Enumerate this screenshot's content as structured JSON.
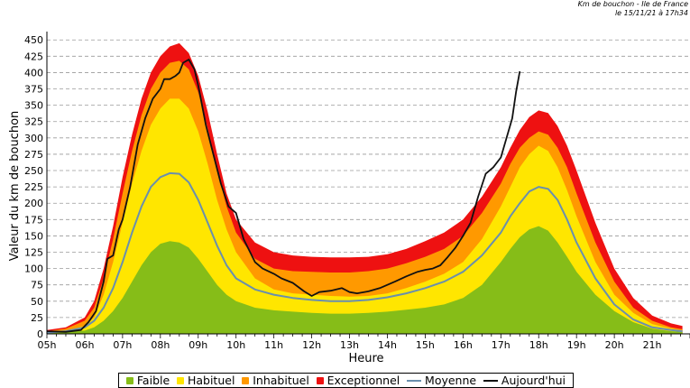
{
  "header": {
    "line1": "Km de bouchon - Ile de France",
    "line2": "le 15/11/21 à 17h34"
  },
  "chart_data": {
    "type": "area",
    "ylabel": "Valeur du  km de bouchon",
    "xlabel": "Heure",
    "ylim": [
      0,
      460
    ],
    "yticks": [
      0,
      25,
      50,
      75,
      100,
      125,
      150,
      175,
      200,
      225,
      250,
      275,
      300,
      325,
      350,
      375,
      400,
      425,
      450
    ],
    "xlim": [
      5,
      22
    ],
    "xtick_labels": [
      "05h",
      "06h",
      "07h",
      "08h",
      "09h",
      "10h",
      "11h",
      "12h",
      "13h",
      "14h",
      "15h",
      "16h",
      "17h",
      "18h",
      "19h",
      "20h",
      "21h"
    ],
    "grid": true,
    "x": [
      5.0,
      5.5,
      6.0,
      6.25,
      6.5,
      6.75,
      7.0,
      7.25,
      7.5,
      7.75,
      8.0,
      8.25,
      8.5,
      8.75,
      9.0,
      9.25,
      9.5,
      9.75,
      10.0,
      10.5,
      11.0,
      11.5,
      12.0,
      12.5,
      13.0,
      13.5,
      14.0,
      14.5,
      15.0,
      15.5,
      16.0,
      16.5,
      17.0,
      17.25,
      17.5,
      17.75,
      18.0,
      18.25,
      18.5,
      18.75,
      19.0,
      19.5,
      20.0,
      20.5,
      21.0,
      21.5,
      21.8
    ],
    "series": [
      {
        "name": "Faible",
        "color": "#86bd18",
        "kind": "area",
        "values": [
          2,
          3,
          5,
          10,
          20,
          35,
          55,
          80,
          105,
          125,
          138,
          142,
          140,
          132,
          115,
          95,
          75,
          60,
          50,
          40,
          36,
          34,
          32,
          31,
          31,
          32,
          34,
          37,
          40,
          45,
          55,
          75,
          110,
          130,
          148,
          160,
          165,
          158,
          140,
          118,
          95,
          60,
          35,
          18,
          8,
          4,
          3
        ]
      },
      {
        "name": "Habituel",
        "color": "#ffe600",
        "kind": "area",
        "values": [
          3,
          5,
          12,
          25,
          60,
          110,
          170,
          230,
          280,
          320,
          345,
          360,
          360,
          345,
          310,
          260,
          205,
          160,
          125,
          85,
          68,
          62,
          60,
          58,
          57,
          58,
          62,
          70,
          80,
          92,
          110,
          145,
          195,
          225,
          255,
          275,
          288,
          280,
          255,
          220,
          180,
          110,
          60,
          32,
          15,
          8,
          5
        ]
      },
      {
        "name": "Inhabituel",
        "color": "#ff9900",
        "kind": "area",
        "values": [
          4,
          8,
          20,
          40,
          85,
          145,
          215,
          280,
          335,
          375,
          400,
          415,
          418,
          405,
          370,
          315,
          250,
          195,
          155,
          115,
          100,
          96,
          95,
          94,
          94,
          96,
          100,
          108,
          118,
          130,
          150,
          185,
          230,
          260,
          285,
          300,
          310,
          305,
          285,
          255,
          215,
          140,
          80,
          40,
          20,
          10,
          7
        ]
      },
      {
        "name": "Exceptionnel",
        "color": "#ee1111",
        "kind": "area",
        "values": [
          6,
          10,
          25,
          50,
          100,
          165,
          240,
          305,
          360,
          400,
          425,
          440,
          445,
          430,
          395,
          340,
          275,
          215,
          175,
          140,
          125,
          120,
          118,
          117,
          117,
          118,
          122,
          130,
          142,
          155,
          175,
          210,
          255,
          285,
          312,
          332,
          342,
          338,
          318,
          288,
          250,
          170,
          100,
          55,
          28,
          16,
          12
        ]
      },
      {
        "name": "Moyenne",
        "color": "#6a8fad",
        "kind": "line",
        "values": [
          2,
          4,
          10,
          20,
          40,
          70,
          110,
          155,
          195,
          225,
          240,
          246,
          245,
          232,
          205,
          170,
          135,
          105,
          85,
          68,
          60,
          55,
          52,
          50,
          50,
          52,
          56,
          62,
          70,
          80,
          95,
          120,
          155,
          180,
          200,
          218,
          225,
          222,
          205,
          175,
          140,
          85,
          45,
          22,
          10,
          6,
          4
        ]
      },
      {
        "name": "Aujourd'hui",
        "color": "#111111",
        "kind": "line",
        "x": [
          5.0,
          5.5,
          5.9,
          6.1,
          6.3,
          6.5,
          6.6,
          6.75,
          6.9,
          7.0,
          7.2,
          7.4,
          7.6,
          7.8,
          8.0,
          8.1,
          8.25,
          8.4,
          8.5,
          8.6,
          8.75,
          8.9,
          9.0,
          9.2,
          9.4,
          9.6,
          9.8,
          10.0,
          10.2,
          10.5,
          10.7,
          11.0,
          11.2,
          11.5,
          11.8,
          12.0,
          12.2,
          12.5,
          12.8,
          13.0,
          13.2,
          13.5,
          13.8,
          14.0,
          14.2,
          14.5,
          14.8,
          15.0,
          15.2,
          15.4,
          15.6,
          15.8,
          16.0,
          16.2,
          16.4,
          16.6,
          16.8,
          17.0,
          17.2,
          17.3,
          17.4,
          17.5
        ],
        "values": [
          4,
          3,
          6,
          18,
          35,
          80,
          115,
          120,
          160,
          175,
          225,
          290,
          330,
          360,
          375,
          390,
          390,
          395,
          400,
          415,
          420,
          405,
          380,
          320,
          275,
          230,
          195,
          185,
          145,
          110,
          100,
          92,
          85,
          78,
          65,
          58,
          64,
          66,
          70,
          64,
          62,
          65,
          70,
          75,
          80,
          88,
          95,
          98,
          100,
          105,
          118,
          132,
          150,
          170,
          210,
          245,
          255,
          270,
          310,
          330,
          370,
          402
        ]
      }
    ]
  },
  "legend": {
    "faible": "Faible",
    "habituel": "Habituel",
    "inhabituel": "Inhabituel",
    "exceptionnel": "Exceptionnel",
    "moyenne": "Moyenne",
    "aujourdhui": "Aujourd'hui"
  }
}
